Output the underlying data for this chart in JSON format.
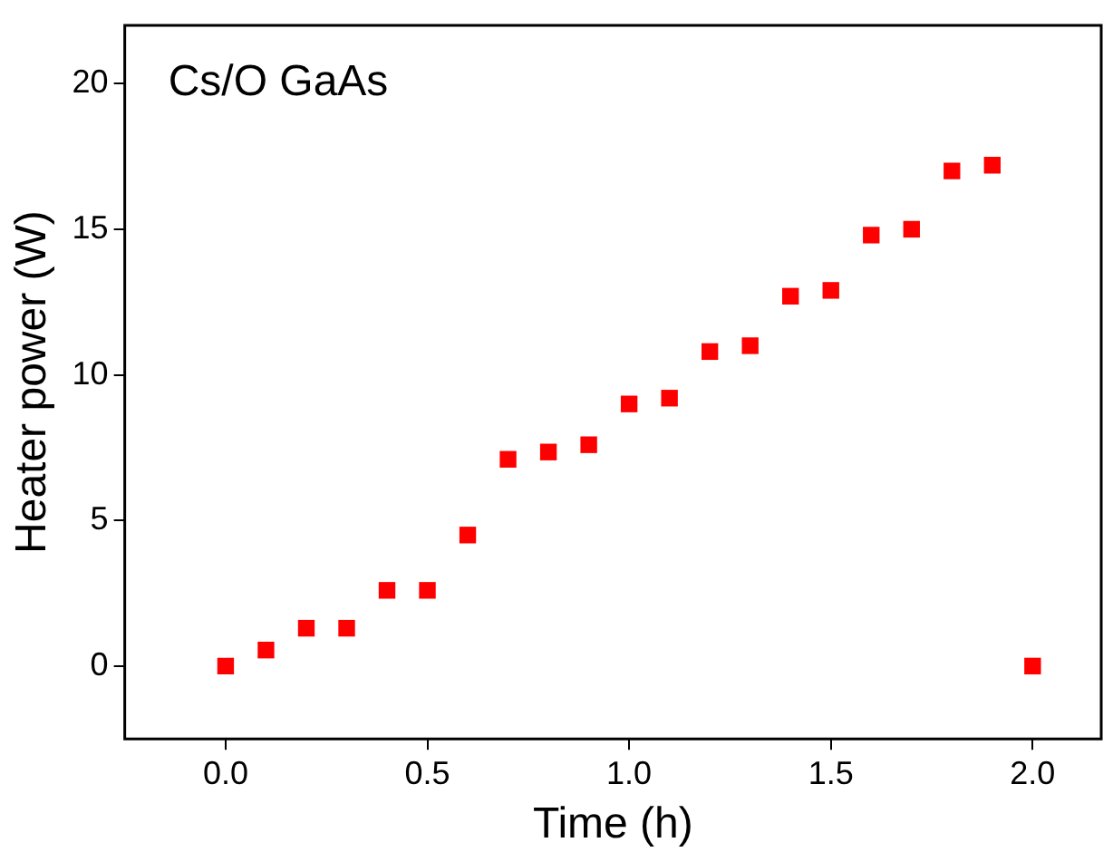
{
  "chart_data": {
    "type": "scatter",
    "xlabel": "Time (h)",
    "ylabel": "Heater power (W)",
    "annotations": [
      "Cs/O GaAs"
    ],
    "x": [
      0,
      0.1,
      0.2,
      0.3,
      0.4,
      0.5,
      0.6,
      0.7,
      0.8,
      0.9,
      1.0,
      1.1,
      1.2,
      1.3,
      1.4,
      1.5,
      1.6,
      1.7,
      1.8,
      1.9,
      2.0
    ],
    "series": [
      {
        "color": "#ff0000",
        "values": [
          0,
          0.55,
          1.3,
          1.3,
          2.6,
          2.6,
          4.5,
          7.1,
          7.35,
          7.6,
          9.0,
          9.2,
          10.8,
          11.0,
          12.7,
          12.9,
          14.8,
          15.0,
          17.0,
          17.2,
          0
        ]
      }
    ],
    "xlim": [
      -0.25,
      2.17
    ],
    "xticks": [
      {
        "value": 0,
        "label": "0.0"
      },
      {
        "value": 0.5,
        "label": "0.5"
      },
      {
        "value": 1,
        "label": "1.0"
      },
      {
        "value": 1.5,
        "label": "1.5"
      },
      {
        "value": 2,
        "label": "2.0"
      }
    ],
    "ylim": [
      -2.5,
      22
    ],
    "yticks": [
      0,
      5,
      10,
      15,
      20
    ],
    "grid": false,
    "legend": false,
    "marker": "square"
  }
}
